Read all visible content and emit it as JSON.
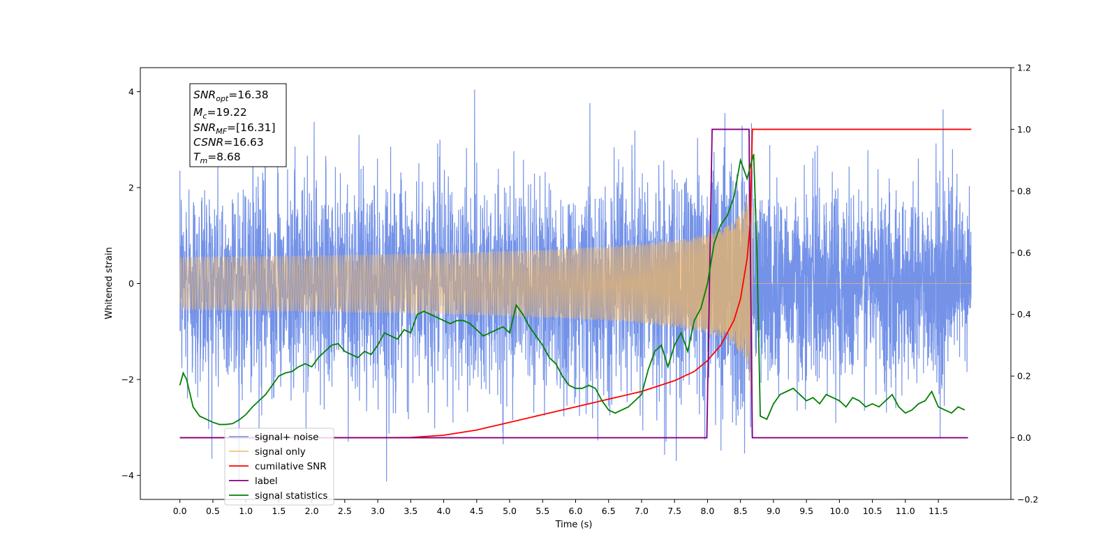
{
  "chart_data": {
    "type": "line",
    "title": "",
    "xlabel": "Time (s)",
    "ylabel": "Whitened strain",
    "xlim": [
      -0.6,
      12.6
    ],
    "ylim": [
      -4.5,
      4.5
    ],
    "y2lim": [
      -0.2,
      1.2
    ],
    "grid": false,
    "legend_position": "lower-left",
    "x_ticks": [
      "0.0",
      "0.5",
      "1.0",
      "1.5",
      "2.0",
      "2.5",
      "3.0",
      "3.5",
      "4.0",
      "4.5",
      "5.0",
      "5.5",
      "6.0",
      "6.5",
      "7.0",
      "7.5",
      "8.0",
      "8.5",
      "9.0",
      "9.5",
      "10.0",
      "10.5",
      "11.0",
      "11.5"
    ],
    "y_ticks": [
      "4",
      "2",
      "0",
      "−2",
      "−4"
    ],
    "y2_ticks": [
      "1.2",
      "1.0",
      "0.8",
      "0.6",
      "0.4",
      "0.2",
      "0.0",
      "−0.2"
    ],
    "info_box": [
      {
        "base": "SNR",
        "sub": "opt",
        "rest": "=16.38"
      },
      {
        "base": "M",
        "sub": "c",
        "rest": "=19.22"
      },
      {
        "base": "SNR",
        "sub": "MF",
        "rest": "=[16.31]"
      },
      {
        "base": "CSNR",
        "sub": "",
        "rest": "=16.63"
      },
      {
        "base": "T",
        "sub": "m",
        "rest": "=8.68"
      }
    ],
    "series": [
      {
        "name": "signal+ noise",
        "color": "#7090e8",
        "axis": "left",
        "description_values": {
          "t_start": 0.0,
          "t_end": 12.0,
          "noise_sigma": 1.0,
          "max": 4.08,
          "min": -4.12
        }
      },
      {
        "name": "signal only",
        "color": "#f4b860",
        "axis": "left",
        "description_values": {
          "merger_time": 8.68,
          "peak_amplitude": 2.0
        }
      },
      {
        "name": "cumilative SNR",
        "color": "#ff0000",
        "axis": "right",
        "x": [
          0.0,
          3.0,
          3.5,
          4.0,
          4.5,
          5.0,
          5.5,
          6.0,
          6.5,
          7.0,
          7.5,
          7.8,
          8.0,
          8.2,
          8.4,
          8.5,
          8.6,
          8.65,
          8.68,
          12.0
        ],
        "values": [
          0.0,
          0.0,
          0.001,
          0.008,
          0.025,
          0.05,
          0.075,
          0.1,
          0.125,
          0.15,
          0.185,
          0.215,
          0.25,
          0.3,
          0.38,
          0.45,
          0.58,
          0.7,
          1.0,
          1.0
        ]
      },
      {
        "name": "label",
        "color": "#800080",
        "axis": "right",
        "x": [
          0.0,
          7.99,
          8.07,
          8.63,
          8.68,
          11.95
        ],
        "values": [
          0.0,
          0.0,
          1.0,
          1.0,
          0.0,
          0.0
        ]
      },
      {
        "name": "signal statistics",
        "color": "#008000",
        "axis": "right",
        "x": [
          0.0,
          0.05,
          0.1,
          0.2,
          0.3,
          0.4,
          0.5,
          0.6,
          0.7,
          0.8,
          0.9,
          1.0,
          1.1,
          1.2,
          1.3,
          1.4,
          1.5,
          1.6,
          1.7,
          1.8,
          1.9,
          2.0,
          2.1,
          2.2,
          2.3,
          2.4,
          2.5,
          2.6,
          2.7,
          2.8,
          2.9,
          3.0,
          3.1,
          3.2,
          3.3,
          3.4,
          3.5,
          3.6,
          3.7,
          3.8,
          3.9,
          4.0,
          4.1,
          4.2,
          4.3,
          4.4,
          4.5,
          4.6,
          4.7,
          4.8,
          4.9,
          5.0,
          5.1,
          5.2,
          5.3,
          5.4,
          5.5,
          5.6,
          5.7,
          5.8,
          5.9,
          6.0,
          6.1,
          6.2,
          6.3,
          6.4,
          6.5,
          6.6,
          6.7,
          6.8,
          6.9,
          7.0,
          7.1,
          7.2,
          7.3,
          7.4,
          7.5,
          7.6,
          7.7,
          7.8,
          7.9,
          8.0,
          8.1,
          8.2,
          8.3,
          8.4,
          8.5,
          8.6,
          8.65,
          8.7,
          8.75,
          8.8,
          8.9,
          9.0,
          9.1,
          9.2,
          9.3,
          9.4,
          9.5,
          9.6,
          9.7,
          9.8,
          9.9,
          10.0,
          10.1,
          10.2,
          10.3,
          10.4,
          10.5,
          10.6,
          10.7,
          10.8,
          10.9,
          11.0,
          11.1,
          11.2,
          11.3,
          11.4,
          11.5,
          11.6,
          11.7,
          11.8,
          11.9
        ],
        "values": [
          0.17,
          0.21,
          0.19,
          0.1,
          0.07,
          0.06,
          0.05,
          0.043,
          0.043,
          0.046,
          0.058,
          0.075,
          0.1,
          0.12,
          0.14,
          0.17,
          0.2,
          0.21,
          0.215,
          0.23,
          0.24,
          0.23,
          0.26,
          0.28,
          0.3,
          0.305,
          0.28,
          0.27,
          0.26,
          0.28,
          0.27,
          0.3,
          0.34,
          0.33,
          0.32,
          0.35,
          0.34,
          0.4,
          0.41,
          0.4,
          0.39,
          0.38,
          0.37,
          0.38,
          0.38,
          0.37,
          0.35,
          0.33,
          0.34,
          0.35,
          0.36,
          0.34,
          0.43,
          0.4,
          0.36,
          0.33,
          0.3,
          0.26,
          0.24,
          0.2,
          0.17,
          0.16,
          0.16,
          0.17,
          0.16,
          0.12,
          0.09,
          0.08,
          0.09,
          0.1,
          0.12,
          0.14,
          0.22,
          0.28,
          0.3,
          0.23,
          0.3,
          0.34,
          0.28,
          0.38,
          0.42,
          0.5,
          0.63,
          0.69,
          0.72,
          0.78,
          0.9,
          0.84,
          0.88,
          0.92,
          0.6,
          0.07,
          0.06,
          0.11,
          0.14,
          0.15,
          0.16,
          0.14,
          0.12,
          0.13,
          0.11,
          0.14,
          0.13,
          0.12,
          0.1,
          0.13,
          0.12,
          0.1,
          0.11,
          0.1,
          0.12,
          0.14,
          0.1,
          0.08,
          0.09,
          0.11,
          0.12,
          0.15,
          0.1,
          0.09,
          0.08,
          0.1,
          0.09
        ]
      }
    ]
  }
}
